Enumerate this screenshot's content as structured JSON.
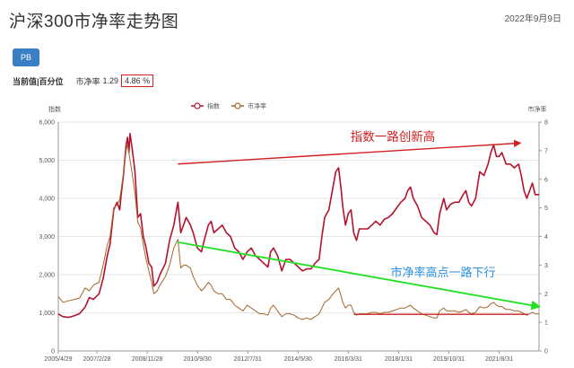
{
  "header": {
    "title": "沪深300市净率走势图",
    "date": "2022年9月9日"
  },
  "toolbar": {
    "pb_label": "PB"
  },
  "stats": {
    "label": "当前值|百分位",
    "metric_name": "市净率",
    "metric_value": "1.29",
    "percentile": "4.86 %"
  },
  "chart_data": {
    "type": "line",
    "legend": [
      "指数",
      "市净率"
    ],
    "legend_position": "top-center",
    "left_axis": {
      "label": "指数",
      "ticks": [
        "0",
        "1,000",
        "2,000",
        "3,000",
        "4,000",
        "5,000",
        "6,000"
      ],
      "ylim": [
        0,
        6000
      ]
    },
    "right_axis": {
      "label": "市净率",
      "ticks": [
        "0",
        "1",
        "2",
        "3",
        "4",
        "5",
        "6",
        "7",
        "8"
      ],
      "ylim": [
        0,
        8
      ]
    },
    "x_ticks": [
      "2005/4/29",
      "2007/2/28",
      "2008/11/28",
      "2010/9/30",
      "2012/7/31",
      "2014/5/30",
      "2016/3/31",
      "2018/1/31",
      "2019/10/31",
      "2021/8/31"
    ],
    "x_range": [
      2005.33,
      2022.69
    ],
    "grid": true,
    "series": [
      {
        "name": "指数",
        "color": "#b5122e",
        "points": [
          [
            2005.33,
            970
          ],
          [
            2005.5,
            900
          ],
          [
            2005.7,
            880
          ],
          [
            2005.9,
            920
          ],
          [
            2006.1,
            980
          ],
          [
            2006.3,
            1150
          ],
          [
            2006.45,
            1400
          ],
          [
            2006.6,
            1350
          ],
          [
            2006.8,
            1500
          ],
          [
            2006.95,
            1900
          ],
          [
            2007.1,
            2500
          ],
          [
            2007.2,
            2800
          ],
          [
            2007.33,
            3700
          ],
          [
            2007.45,
            3900
          ],
          [
            2007.55,
            3700
          ],
          [
            2007.6,
            4100
          ],
          [
            2007.68,
            4600
          ],
          [
            2007.78,
            5400
          ],
          [
            2007.83,
            5600
          ],
          [
            2007.88,
            5200
          ],
          [
            2007.92,
            5700
          ],
          [
            2008.0,
            5300
          ],
          [
            2008.1,
            4700
          ],
          [
            2008.2,
            3500
          ],
          [
            2008.3,
            3600
          ],
          [
            2008.4,
            3000
          ],
          [
            2008.5,
            2700
          ],
          [
            2008.6,
            2300
          ],
          [
            2008.7,
            2200
          ],
          [
            2008.78,
            1700
          ],
          [
            2008.9,
            1800
          ],
          [
            2009.0,
            2000
          ],
          [
            2009.2,
            2300
          ],
          [
            2009.35,
            2900
          ],
          [
            2009.5,
            3300
          ],
          [
            2009.6,
            3700
          ],
          [
            2009.65,
            3900
          ],
          [
            2009.75,
            3100
          ],
          [
            2009.85,
            3300
          ],
          [
            2009.95,
            3500
          ],
          [
            2010.1,
            3300
          ],
          [
            2010.2,
            3100
          ],
          [
            2010.35,
            2700
          ],
          [
            2010.5,
            2600
          ],
          [
            2010.6,
            2900
          ],
          [
            2010.75,
            3300
          ],
          [
            2010.85,
            3400
          ],
          [
            2010.95,
            3100
          ],
          [
            2011.1,
            3200
          ],
          [
            2011.25,
            3300
          ],
          [
            2011.4,
            3100
          ],
          [
            2011.55,
            3000
          ],
          [
            2011.7,
            2700
          ],
          [
            2011.85,
            2600
          ],
          [
            2012.0,
            2400
          ],
          [
            2012.15,
            2600
          ],
          [
            2012.3,
            2700
          ],
          [
            2012.45,
            2500
          ],
          [
            2012.6,
            2400
          ],
          [
            2012.75,
            2300
          ],
          [
            2012.9,
            2200
          ],
          [
            2013.0,
            2600
          ],
          [
            2013.1,
            2700
          ],
          [
            2013.25,
            2500
          ],
          [
            2013.4,
            2100
          ],
          [
            2013.55,
            2400
          ],
          [
            2013.7,
            2400
          ],
          [
            2013.85,
            2300
          ],
          [
            2014.0,
            2200
          ],
          [
            2014.15,
            2100
          ],
          [
            2014.3,
            2150
          ],
          [
            2014.45,
            2150
          ],
          [
            2014.6,
            2300
          ],
          [
            2014.75,
            2400
          ],
          [
            2014.85,
            3000
          ],
          [
            2014.95,
            3500
          ],
          [
            2015.1,
            3700
          ],
          [
            2015.25,
            4300
          ],
          [
            2015.35,
            4700
          ],
          [
            2015.45,
            4800
          ],
          [
            2015.55,
            4200
          ],
          [
            2015.6,
            3800
          ],
          [
            2015.7,
            3300
          ],
          [
            2015.8,
            3600
          ],
          [
            2015.9,
            3700
          ],
          [
            2016.0,
            3100
          ],
          [
            2016.1,
            2900
          ],
          [
            2016.2,
            3200
          ],
          [
            2016.35,
            3200
          ],
          [
            2016.5,
            3200
          ],
          [
            2016.65,
            3300
          ],
          [
            2016.8,
            3400
          ],
          [
            2016.95,
            3300
          ],
          [
            2017.1,
            3450
          ],
          [
            2017.25,
            3500
          ],
          [
            2017.4,
            3600
          ],
          [
            2017.55,
            3750
          ],
          [
            2017.7,
            3900
          ],
          [
            2017.85,
            4000
          ],
          [
            2017.95,
            4200
          ],
          [
            2018.05,
            4300
          ],
          [
            2018.15,
            4000
          ],
          [
            2018.3,
            3800
          ],
          [
            2018.45,
            3500
          ],
          [
            2018.6,
            3400
          ],
          [
            2018.75,
            3300
          ],
          [
            2018.9,
            3100
          ],
          [
            2019.0,
            3050
          ],
          [
            2019.1,
            3600
          ],
          [
            2019.25,
            4000
          ],
          [
            2019.35,
            3700
          ],
          [
            2019.5,
            3850
          ],
          [
            2019.65,
            3900
          ],
          [
            2019.8,
            3900
          ],
          [
            2019.95,
            4100
          ],
          [
            2020.05,
            4200
          ],
          [
            2020.15,
            3900
          ],
          [
            2020.25,
            3800
          ],
          [
            2020.4,
            4000
          ],
          [
            2020.55,
            4700
          ],
          [
            2020.7,
            4600
          ],
          [
            2020.85,
            4900
          ],
          [
            2020.95,
            5200
          ],
          [
            2021.05,
            5400
          ],
          [
            2021.15,
            5100
          ],
          [
            2021.25,
            5100
          ],
          [
            2021.35,
            5200
          ],
          [
            2021.5,
            4900
          ],
          [
            2021.65,
            4900
          ],
          [
            2021.8,
            4800
          ],
          [
            2021.95,
            4900
          ],
          [
            2022.05,
            4600
          ],
          [
            2022.15,
            4200
          ],
          [
            2022.25,
            4000
          ],
          [
            2022.35,
            4200
          ],
          [
            2022.45,
            4400
          ],
          [
            2022.55,
            4100
          ],
          [
            2022.69,
            4100
          ]
        ]
      },
      {
        "name": "市净率",
        "color": "#a3672a",
        "points": [
          [
            2005.33,
            1.9
          ],
          [
            2005.5,
            1.7
          ],
          [
            2005.7,
            1.75
          ],
          [
            2005.9,
            1.8
          ],
          [
            2006.1,
            1.85
          ],
          [
            2006.3,
            2.2
          ],
          [
            2006.45,
            2.1
          ],
          [
            2006.6,
            2.3
          ],
          [
            2006.8,
            2.4
          ],
          [
            2006.95,
            3.0
          ],
          [
            2007.1,
            3.7
          ],
          [
            2007.2,
            4.0
          ],
          [
            2007.33,
            5.0
          ],
          [
            2007.45,
            5.1
          ],
          [
            2007.55,
            5.3
          ],
          [
            2007.68,
            6.2
          ],
          [
            2007.78,
            7.0
          ],
          [
            2007.83,
            7.2
          ],
          [
            2007.9,
            6.8
          ],
          [
            2008.0,
            6.2
          ],
          [
            2008.1,
            5.5
          ],
          [
            2008.2,
            4.5
          ],
          [
            2008.3,
            4.3
          ],
          [
            2008.4,
            3.7
          ],
          [
            2008.5,
            3.2
          ],
          [
            2008.6,
            2.8
          ],
          [
            2008.7,
            2.4
          ],
          [
            2008.78,
            2.0
          ],
          [
            2008.9,
            2.1
          ],
          [
            2009.0,
            2.3
          ],
          [
            2009.2,
            2.6
          ],
          [
            2009.35,
            3.0
          ],
          [
            2009.5,
            3.6
          ],
          [
            2009.6,
            3.8
          ],
          [
            2009.65,
            3.9
          ],
          [
            2009.75,
            2.9
          ],
          [
            2009.85,
            3.0
          ],
          [
            2009.95,
            3.0
          ],
          [
            2010.1,
            2.9
          ],
          [
            2010.2,
            2.6
          ],
          [
            2010.35,
            2.3
          ],
          [
            2010.5,
            2.1
          ],
          [
            2010.6,
            2.2
          ],
          [
            2010.75,
            2.4
          ],
          [
            2010.85,
            2.3
          ],
          [
            2010.95,
            2.1
          ],
          [
            2011.1,
            2.0
          ],
          [
            2011.25,
            2.0
          ],
          [
            2011.4,
            1.8
          ],
          [
            2011.55,
            1.8
          ],
          [
            2011.7,
            1.6
          ],
          [
            2011.85,
            1.5
          ],
          [
            2012.0,
            1.4
          ],
          [
            2012.15,
            1.6
          ],
          [
            2012.3,
            1.5
          ],
          [
            2012.45,
            1.4
          ],
          [
            2012.6,
            1.3
          ],
          [
            2012.75,
            1.3
          ],
          [
            2012.9,
            1.25
          ],
          [
            2013.0,
            1.5
          ],
          [
            2013.1,
            1.6
          ],
          [
            2013.25,
            1.4
          ],
          [
            2013.4,
            1.2
          ],
          [
            2013.55,
            1.3
          ],
          [
            2013.7,
            1.3
          ],
          [
            2013.85,
            1.25
          ],
          [
            2014.0,
            1.15
          ],
          [
            2014.15,
            1.1
          ],
          [
            2014.3,
            1.15
          ],
          [
            2014.45,
            1.1
          ],
          [
            2014.6,
            1.2
          ],
          [
            2014.75,
            1.3
          ],
          [
            2014.85,
            1.5
          ],
          [
            2014.95,
            1.7
          ],
          [
            2015.1,
            1.8
          ],
          [
            2015.25,
            2.0
          ],
          [
            2015.35,
            2.1
          ],
          [
            2015.45,
            2.2
          ],
          [
            2015.55,
            1.9
          ],
          [
            2015.6,
            1.7
          ],
          [
            2015.7,
            1.5
          ],
          [
            2015.8,
            1.6
          ],
          [
            2015.9,
            1.6
          ],
          [
            2016.0,
            1.35
          ],
          [
            2016.1,
            1.25
          ],
          [
            2016.2,
            1.3
          ],
          [
            2016.35,
            1.3
          ],
          [
            2016.5,
            1.3
          ],
          [
            2016.65,
            1.35
          ],
          [
            2016.8,
            1.35
          ],
          [
            2016.95,
            1.3
          ],
          [
            2017.1,
            1.35
          ],
          [
            2017.25,
            1.35
          ],
          [
            2017.4,
            1.4
          ],
          [
            2017.55,
            1.45
          ],
          [
            2017.7,
            1.5
          ],
          [
            2017.85,
            1.5
          ],
          [
            2017.95,
            1.55
          ],
          [
            2018.05,
            1.6
          ],
          [
            2018.15,
            1.5
          ],
          [
            2018.3,
            1.4
          ],
          [
            2018.45,
            1.3
          ],
          [
            2018.6,
            1.25
          ],
          [
            2018.75,
            1.2
          ],
          [
            2018.9,
            1.15
          ],
          [
            2019.0,
            1.15
          ],
          [
            2019.1,
            1.4
          ],
          [
            2019.25,
            1.5
          ],
          [
            2019.35,
            1.4
          ],
          [
            2019.5,
            1.4
          ],
          [
            2019.65,
            1.4
          ],
          [
            2019.8,
            1.35
          ],
          [
            2019.95,
            1.4
          ],
          [
            2020.05,
            1.45
          ],
          [
            2020.15,
            1.35
          ],
          [
            2020.25,
            1.3
          ],
          [
            2020.4,
            1.35
          ],
          [
            2020.55,
            1.55
          ],
          [
            2020.7,
            1.5
          ],
          [
            2020.85,
            1.55
          ],
          [
            2020.95,
            1.65
          ],
          [
            2021.05,
            1.7
          ],
          [
            2021.15,
            1.6
          ],
          [
            2021.25,
            1.55
          ],
          [
            2021.35,
            1.55
          ],
          [
            2021.5,
            1.45
          ],
          [
            2021.65,
            1.45
          ],
          [
            2021.8,
            1.4
          ],
          [
            2021.95,
            1.4
          ],
          [
            2022.05,
            1.35
          ],
          [
            2022.15,
            1.3
          ],
          [
            2022.25,
            1.25
          ],
          [
            2022.35,
            1.3
          ],
          [
            2022.45,
            1.35
          ],
          [
            2022.55,
            1.3
          ],
          [
            2022.69,
            1.29
          ]
        ]
      }
    ],
    "annotations": [
      {
        "text": "指数一路创新高",
        "color": "#d21f1f"
      },
      {
        "text": "市净率高点一路下行",
        "color": "#2b8fe0"
      }
    ],
    "arrows": [
      {
        "name": "index-trend-arrow",
        "color": "#d21f1f",
        "from": [
          2009.65,
          4900
        ],
        "to": [
          2022.0,
          5450
        ],
        "axis": "left"
      },
      {
        "name": "pb-trend-arrow",
        "color": "#22e022",
        "from": [
          2009.65,
          3.8
        ],
        "to": [
          2022.69,
          1.55
        ],
        "axis": "right"
      },
      {
        "name": "pb-floor-line",
        "color": "#d21f1f",
        "from": [
          2016.0,
          1.28
        ],
        "to": [
          2022.3,
          1.28
        ],
        "axis": "right"
      }
    ]
  }
}
